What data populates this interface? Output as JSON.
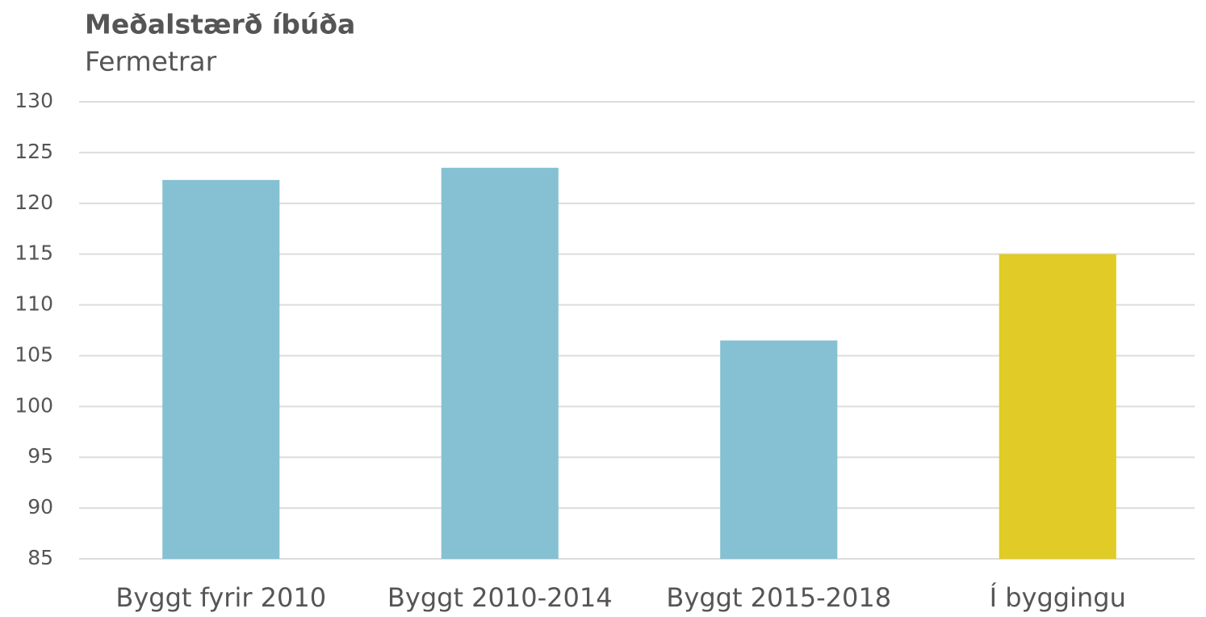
{
  "chart_data": {
    "type": "bar",
    "title": "Meðalstærð íbúða",
    "subtitle": "Fermetrar",
    "categories": [
      "Byggt fyrir 2010",
      "Byggt 2010-2014",
      "Byggt 2015-2018",
      "Í byggingu"
    ],
    "values": [
      122.3,
      123.5,
      106.5,
      115
    ],
    "colors": [
      "#85c1d2",
      "#85c1d2",
      "#85c1d2",
      "#e1cb26"
    ],
    "ylim": [
      85,
      130
    ],
    "yticks": [
      85,
      90,
      95,
      100,
      105,
      110,
      115,
      120,
      125,
      130
    ],
    "grid": true
  }
}
